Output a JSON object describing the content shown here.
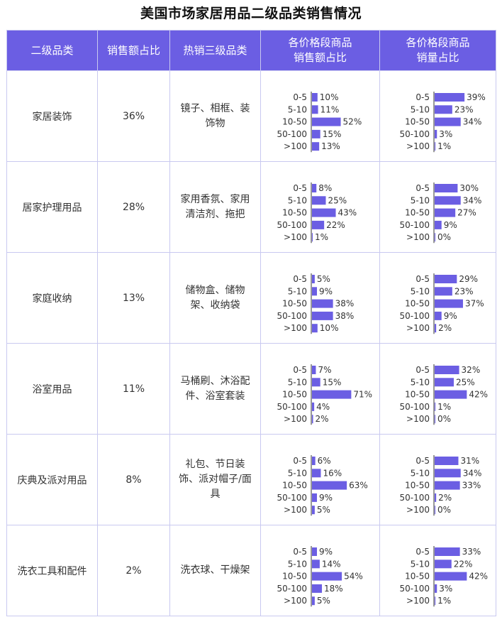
{
  "title": "美国市场家居用品二级品类销售情况",
  "headers": {
    "col1": "二级品类",
    "col2": "销售额占比",
    "col3": "热销三级品类",
    "col4_line1": "各价格段商品",
    "col4_line2": "销售额占比",
    "col5_line1": "各价格段商品",
    "col5_line2": "销量占比"
  },
  "rows": [
    {
      "category": "家居装饰",
      "share": "36%",
      "hot": "镜子、相框、装饰物"
    },
    {
      "category": "居家护理用品",
      "share": "28%",
      "hot": "家用香氛、家用清洁剂、拖把"
    },
    {
      "category": "家庭收纳",
      "share": "13%",
      "hot": "储物盒、储物架、收纳袋"
    },
    {
      "category": "浴室用品",
      "share": "11%",
      "hot": "马桶刷、沐浴配件、浴室套装"
    },
    {
      "category": "庆典及派对用品",
      "share": "8%",
      "hot": "礼包、节日装饰、派对帽子/面具"
    },
    {
      "category": "洗衣工具和配件",
      "share": "2%",
      "hot": "洗衣球、干燥架"
    }
  ],
  "chart_data": {
    "type": "bar",
    "categories": [
      "0-5",
      "5-10",
      "10-50",
      "50-100",
      ">100"
    ],
    "sales_share": [
      [
        10,
        11,
        52,
        15,
        13
      ],
      [
        8,
        25,
        43,
        22,
        1
      ],
      [
        5,
        9,
        38,
        38,
        10
      ],
      [
        7,
        15,
        71,
        4,
        2
      ],
      [
        6,
        16,
        63,
        9,
        5
      ],
      [
        9,
        14,
        54,
        18,
        5
      ]
    ],
    "volume_share": [
      [
        39,
        23,
        34,
        3,
        1
      ],
      [
        30,
        34,
        27,
        9,
        0
      ],
      [
        29,
        23,
        37,
        9,
        2
      ],
      [
        32,
        25,
        42,
        1,
        0
      ],
      [
        31,
        34,
        33,
        2,
        0
      ],
      [
        33,
        22,
        42,
        3,
        1
      ]
    ],
    "value_suffix": "%",
    "bar_color": "#6b5ee3"
  }
}
